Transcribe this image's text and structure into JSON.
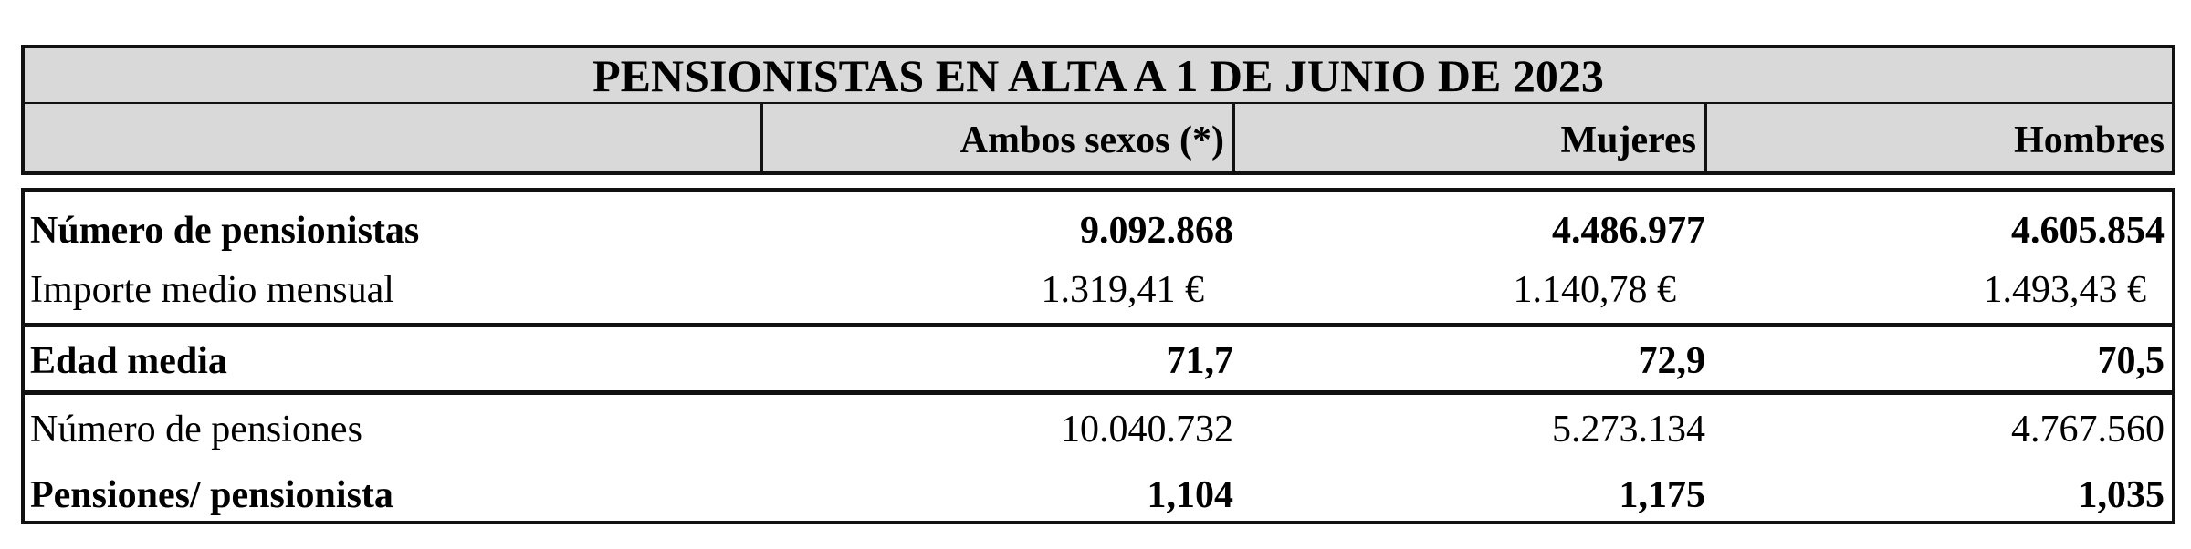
{
  "title": "PENSIONISTAS EN ALTA A 1 DE JUNIO DE 2023",
  "columns": [
    "",
    "Ambos sexos (*)",
    "Mujeres",
    "Hombres"
  ],
  "rows": [
    {
      "label": "Número de pensionistas",
      "values": [
        "9.092.868",
        "4.486.977",
        "4.605.854"
      ],
      "bold": true
    },
    {
      "label": "Importe medio mensual",
      "values": [
        "1.319,41 €",
        "1.140,78 €",
        "1.493,43 €"
      ],
      "bold": false
    },
    {
      "label": "Edad media",
      "values": [
        "71,7",
        "72,9",
        "70,5"
      ],
      "bold": true
    },
    {
      "label": "Número de pensiones",
      "values": [
        "10.040.732",
        "5.273.134",
        "4.767.560"
      ],
      "bold": false
    },
    {
      "label": "Pensiones/ pensionista",
      "values": [
        "1,104",
        "1,175",
        "1,035"
      ],
      "bold": true
    }
  ],
  "colors": {
    "header_bg": "#d9d9d9",
    "border": "#111111"
  }
}
